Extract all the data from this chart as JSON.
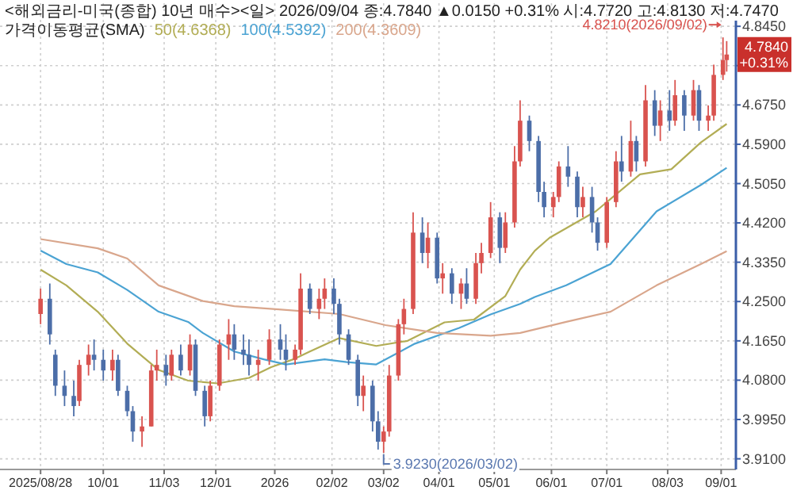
{
  "chart_data": {
    "type": "candlestick",
    "title": "<해외금리-미국(종합) 10년 매수><일>",
    "subtitle": "2026/09/04 종:4.7840 ▲0.0150 +0.31% 시:4.7720 고:4.8130 저:4.7470",
    "legend_title": "가격이동평균(SMA)",
    "legend": "top left",
    "grid": true,
    "xlim": [
      "2025-08-06",
      "2026-09-09"
    ],
    "xticks": [
      {
        "value": "2025-08-28",
        "label": "2025/08/28"
      },
      {
        "value": "2025-10-01",
        "label": "10/01"
      },
      {
        "value": "2025-11-03",
        "label": "11/03"
      },
      {
        "value": "2025-12-01",
        "label": "12/01"
      },
      {
        "value": "2026-01-02",
        "label": "2026"
      },
      {
        "value": "2026-02-02",
        "label": "02/02"
      },
      {
        "value": "2026-03-02",
        "label": "03/02"
      },
      {
        "value": "2026-04-01",
        "label": "04/01"
      },
      {
        "value": "2026-05-01",
        "label": "05/01"
      },
      {
        "value": "2026-06-01",
        "label": "06/01"
      },
      {
        "value": "2026-07-01",
        "label": "07/01"
      },
      {
        "value": "2026-08-03",
        "label": "08/03"
      },
      {
        "value": "2026-09-01",
        "label": "09/01"
      }
    ],
    "ylim": [
      3.887,
      4.895
    ],
    "yticks": [
      {
        "value": 3.91,
        "label": "3.9100"
      },
      {
        "value": 3.995,
        "label": "3.9950"
      },
      {
        "value": 4.08,
        "label": "4.0800"
      },
      {
        "value": 4.165,
        "label": "4.1650"
      },
      {
        "value": 4.25,
        "label": "4.2500"
      },
      {
        "value": 4.335,
        "label": "4.3350"
      },
      {
        "value": 4.42,
        "label": "4.4200"
      },
      {
        "value": 4.505,
        "label": "4.5050"
      },
      {
        "value": 4.59,
        "label": "4.5900"
      },
      {
        "value": 4.675,
        "label": "4.6750"
      },
      {
        "value": 4.76,
        "label": null
      },
      {
        "value": 4.845,
        "label": "4.8450"
      }
    ],
    "annotations": [
      "4.8210(2026/09/02)",
      "3.9230(2026/03/02)",
      "4.7840 +0.31%"
    ],
    "x": [
      "2025-08-28",
      "2025-09-02",
      "2025-09-05",
      "2025-09-10",
      "2025-09-15",
      "2025-09-18",
      "2025-09-23",
      "2025-09-26",
      "2025-10-01",
      "2025-10-06",
      "2025-10-09",
      "2025-10-14",
      "2025-10-17",
      "2025-10-22",
      "2025-10-27",
      "2025-10-30",
      "2025-11-04",
      "2025-11-07",
      "2025-11-12",
      "2025-11-17",
      "2025-11-20",
      "2025-11-25",
      "2025-11-28",
      "2025-12-03",
      "2025-12-08",
      "2025-12-11",
      "2025-12-16",
      "2025-12-19",
      "2025-12-24",
      "2025-12-30",
      "2026-01-05",
      "2026-01-08",
      "2026-01-13",
      "2026-01-16",
      "2026-01-21",
      "2026-01-26",
      "2026-01-29",
      "2026-02-03",
      "2026-02-06",
      "2026-02-11",
      "2026-02-16",
      "2026-02-19",
      "2026-02-24",
      "2026-02-27",
      "2026-03-02",
      "2026-03-05",
      "2026-03-10",
      "2026-03-13",
      "2026-03-18",
      "2026-03-23",
      "2026-03-26",
      "2026-03-31",
      "2026-04-03",
      "2026-04-08",
      "2026-04-13",
      "2026-04-16",
      "2026-04-21",
      "2026-04-24",
      "2026-04-29",
      "2026-05-04",
      "2026-05-07",
      "2026-05-12",
      "2026-05-15",
      "2026-05-20",
      "2026-05-25",
      "2026-05-28",
      "2026-06-02",
      "2026-06-05",
      "2026-06-10",
      "2026-06-15",
      "2026-06-18",
      "2026-06-23",
      "2026-06-26",
      "2026-07-01",
      "2026-07-06",
      "2026-07-09",
      "2026-07-14",
      "2026-07-17",
      "2026-07-22",
      "2026-07-27",
      "2026-07-30",
      "2026-08-04",
      "2026-08-07",
      "2026-08-12",
      "2026-08-17",
      "2026-08-20",
      "2026-08-25",
      "2026-08-28",
      "2026-09-02",
      "2026-09-04"
    ],
    "ohlc": [
      [
        4.223,
        4.278,
        4.201,
        4.256
      ],
      [
        4.256,
        4.289,
        4.157,
        4.179
      ],
      [
        4.135,
        4.146,
        4.046,
        4.068
      ],
      [
        4.068,
        4.101,
        4.024,
        4.046
      ],
      [
        4.046,
        4.079,
        4.002,
        4.024
      ],
      [
        4.035,
        4.124,
        4.024,
        4.113
      ],
      [
        4.113,
        4.157,
        4.09,
        4.135
      ],
      [
        4.135,
        4.168,
        4.101,
        4.124
      ],
      [
        4.124,
        4.146,
        4.079,
        4.101
      ],
      [
        4.101,
        4.146,
        4.079,
        4.124
      ],
      [
        4.124,
        4.135,
        4.046,
        4.057
      ],
      [
        4.057,
        4.068,
        4.002,
        4.013
      ],
      [
        4.013,
        4.024,
        3.947,
        3.969
      ],
      [
        3.969,
        4.002,
        3.936,
        3.98
      ],
      [
        3.98,
        4.113,
        3.98,
        4.101
      ],
      [
        4.101,
        4.146,
        4.079,
        4.113
      ],
      [
        4.113,
        4.135,
        4.068,
        4.09
      ],
      [
        4.09,
        4.146,
        4.079,
        4.135
      ],
      [
        4.135,
        4.157,
        4.09,
        4.101
      ],
      [
        4.101,
        4.179,
        4.09,
        4.157
      ],
      [
        4.157,
        4.168,
        4.046,
        4.057
      ],
      [
        4.057,
        4.068,
        3.98,
        4.002
      ],
      [
        4.002,
        4.079,
        3.991,
        4.068
      ],
      [
        4.068,
        4.168,
        4.057,
        4.157
      ],
      [
        4.157,
        4.212,
        4.124,
        4.179
      ],
      [
        4.179,
        4.201,
        4.124,
        4.146
      ],
      [
        4.146,
        4.179,
        4.113,
        4.135
      ],
      [
        4.135,
        4.168,
        4.09,
        4.113
      ],
      [
        4.113,
        4.146,
        4.079,
        4.124
      ],
      [
        4.124,
        4.19,
        4.113,
        4.168
      ],
      [
        4.168,
        4.201,
        4.124,
        4.146
      ],
      [
        4.146,
        4.179,
        4.101,
        4.124
      ],
      [
        4.124,
        4.157,
        4.113,
        4.146
      ],
      [
        4.146,
        4.311,
        4.135,
        4.278
      ],
      [
        4.278,
        4.289,
        4.223,
        4.234
      ],
      [
        4.234,
        4.278,
        4.212,
        4.256
      ],
      [
        4.256,
        4.3,
        4.234,
        4.278
      ],
      [
        4.278,
        4.3,
        4.223,
        4.245
      ],
      [
        4.245,
        4.256,
        4.157,
        4.179
      ],
      [
        4.179,
        4.19,
        4.113,
        4.124
      ],
      [
        4.124,
        4.135,
        4.024,
        4.046
      ],
      [
        4.046,
        4.09,
        4.013,
        4.068
      ],
      [
        4.068,
        4.079,
        3.969,
        3.991
      ],
      [
        3.991,
        4.013,
        3.93,
        3.947
      ],
      [
        3.947,
        3.98,
        3.923,
        3.969
      ],
      [
        3.969,
        4.113,
        3.958,
        4.09
      ],
      [
        4.09,
        4.212,
        4.079,
        4.201
      ],
      [
        4.201,
        4.256,
        4.179,
        4.234
      ],
      [
        4.234,
        4.443,
        4.223,
        4.399
      ],
      [
        4.399,
        4.432,
        4.333,
        4.355
      ],
      [
        4.355,
        4.421,
        4.322,
        4.388
      ],
      [
        4.388,
        4.399,
        4.289,
        4.3
      ],
      [
        4.3,
        4.333,
        4.267,
        4.311
      ],
      [
        4.311,
        4.322,
        4.245,
        4.267
      ],
      [
        4.267,
        4.3,
        4.234,
        4.289
      ],
      [
        4.289,
        4.322,
        4.245,
        4.256
      ],
      [
        4.256,
        4.355,
        4.245,
        4.333
      ],
      [
        4.333,
        4.377,
        4.311,
        4.355
      ],
      [
        4.355,
        4.465,
        4.344,
        4.432
      ],
      [
        4.432,
        4.443,
        4.333,
        4.366
      ],
      [
        4.366,
        4.443,
        4.355,
        4.421
      ],
      [
        4.421,
        4.586,
        4.41,
        4.553
      ],
      [
        4.553,
        4.685,
        4.542,
        4.641
      ],
      [
        4.641,
        4.652,
        4.575,
        4.597
      ],
      [
        4.597,
        4.608,
        4.465,
        4.487
      ],
      [
        4.487,
        4.509,
        4.432,
        4.454
      ],
      [
        4.454,
        4.487,
        4.432,
        4.476
      ],
      [
        4.476,
        4.553,
        4.465,
        4.542
      ],
      [
        4.542,
        4.586,
        4.498,
        4.52
      ],
      [
        4.52,
        4.531,
        4.432,
        4.454
      ],
      [
        4.454,
        4.498,
        4.432,
        4.476
      ],
      [
        4.476,
        4.498,
        4.399,
        4.421
      ],
      [
        4.421,
        4.432,
        4.36,
        4.377
      ],
      [
        4.377,
        4.476,
        4.366,
        4.465
      ],
      [
        4.465,
        4.575,
        4.454,
        4.553
      ],
      [
        4.553,
        4.608,
        4.509,
        4.531
      ],
      [
        4.531,
        4.641,
        4.52,
        4.597
      ],
      [
        4.597,
        4.608,
        4.531,
        4.553
      ],
      [
        4.553,
        4.718,
        4.542,
        4.685
      ],
      [
        4.685,
        4.707,
        4.608,
        4.63
      ],
      [
        4.63,
        4.685,
        4.597,
        4.663
      ],
      [
        4.663,
        4.707,
        4.619,
        4.641
      ],
      [
        4.641,
        4.729,
        4.63,
        4.696
      ],
      [
        4.696,
        4.707,
        4.619,
        4.652
      ],
      [
        4.652,
        4.729,
        4.641,
        4.707
      ],
      [
        4.707,
        4.718,
        4.619,
        4.641
      ],
      [
        4.641,
        4.674,
        4.619,
        4.652
      ],
      [
        4.652,
        4.762,
        4.641,
        4.74
      ],
      [
        4.74,
        4.821,
        4.729,
        4.772
      ],
      [
        4.772,
        4.813,
        4.747,
        4.784
      ]
    ],
    "series": [
      {
        "type": "line",
        "name": "50(4.6368)",
        "color": "#b2ad55",
        "x": [
          "2025-08-28",
          "2025-09-11",
          "2025-09-28",
          "2025-10-14",
          "2025-10-31",
          "2025-11-16",
          "2025-12-02",
          "2025-12-19",
          "2025-12-31",
          "2026-01-12",
          "2026-01-21",
          "2026-02-06",
          "2026-02-26",
          "2026-03-15",
          "2026-04-04",
          "2026-04-20",
          "2026-05-07",
          "2026-05-15",
          "2026-05-23",
          "2026-05-31",
          "2026-06-25",
          "2026-07-19",
          "2026-08-05",
          "2026-08-21",
          "2026-09-04"
        ],
        "values": [
          4.319,
          4.285,
          4.228,
          4.159,
          4.102,
          4.079,
          4.073,
          4.085,
          4.108,
          4.125,
          4.142,
          4.171,
          4.154,
          4.165,
          4.205,
          4.211,
          4.262,
          4.319,
          4.36,
          4.388,
          4.445,
          4.525,
          4.536,
          4.594,
          4.634
        ]
      },
      {
        "type": "line",
        "name": "100(4.5392)",
        "color": "#4ba3d3",
        "x": [
          "2025-08-28",
          "2025-09-11",
          "2025-09-28",
          "2025-10-14",
          "2025-10-31",
          "2025-11-16",
          "2025-11-24",
          "2025-12-11",
          "2025-12-27",
          "2026-01-08",
          "2026-01-29",
          "2026-02-10",
          "2026-02-26",
          "2026-03-19",
          "2026-04-12",
          "2026-04-29",
          "2026-05-15",
          "2026-05-23",
          "2026-06-09",
          "2026-07-03",
          "2026-07-28",
          "2026-08-21",
          "2026-09-04"
        ],
        "values": [
          4.36,
          4.331,
          4.313,
          4.275,
          4.228,
          4.206,
          4.182,
          4.142,
          4.125,
          4.114,
          4.125,
          4.119,
          4.114,
          4.159,
          4.193,
          4.222,
          4.245,
          4.26,
          4.285,
          4.331,
          4.445,
          4.502,
          4.539
        ]
      },
      {
        "type": "line",
        "name": "200(4.3609)",
        "color": "#d9a68c",
        "x": [
          "2025-08-28",
          "2025-09-28",
          "2025-10-14",
          "2025-10-31",
          "2025-11-24",
          "2025-12-11",
          "2026-01-04",
          "2026-02-06",
          "2026-03-03",
          "2026-03-31",
          "2026-04-29",
          "2026-05-15",
          "2026-06-09",
          "2026-07-03",
          "2026-07-28",
          "2026-08-21",
          "2026-09-04"
        ],
        "values": [
          4.385,
          4.365,
          4.343,
          4.285,
          4.251,
          4.24,
          4.233,
          4.223,
          4.199,
          4.182,
          4.176,
          4.182,
          4.206,
          4.228,
          4.285,
          4.331,
          4.359
        ]
      }
    ]
  }
}
